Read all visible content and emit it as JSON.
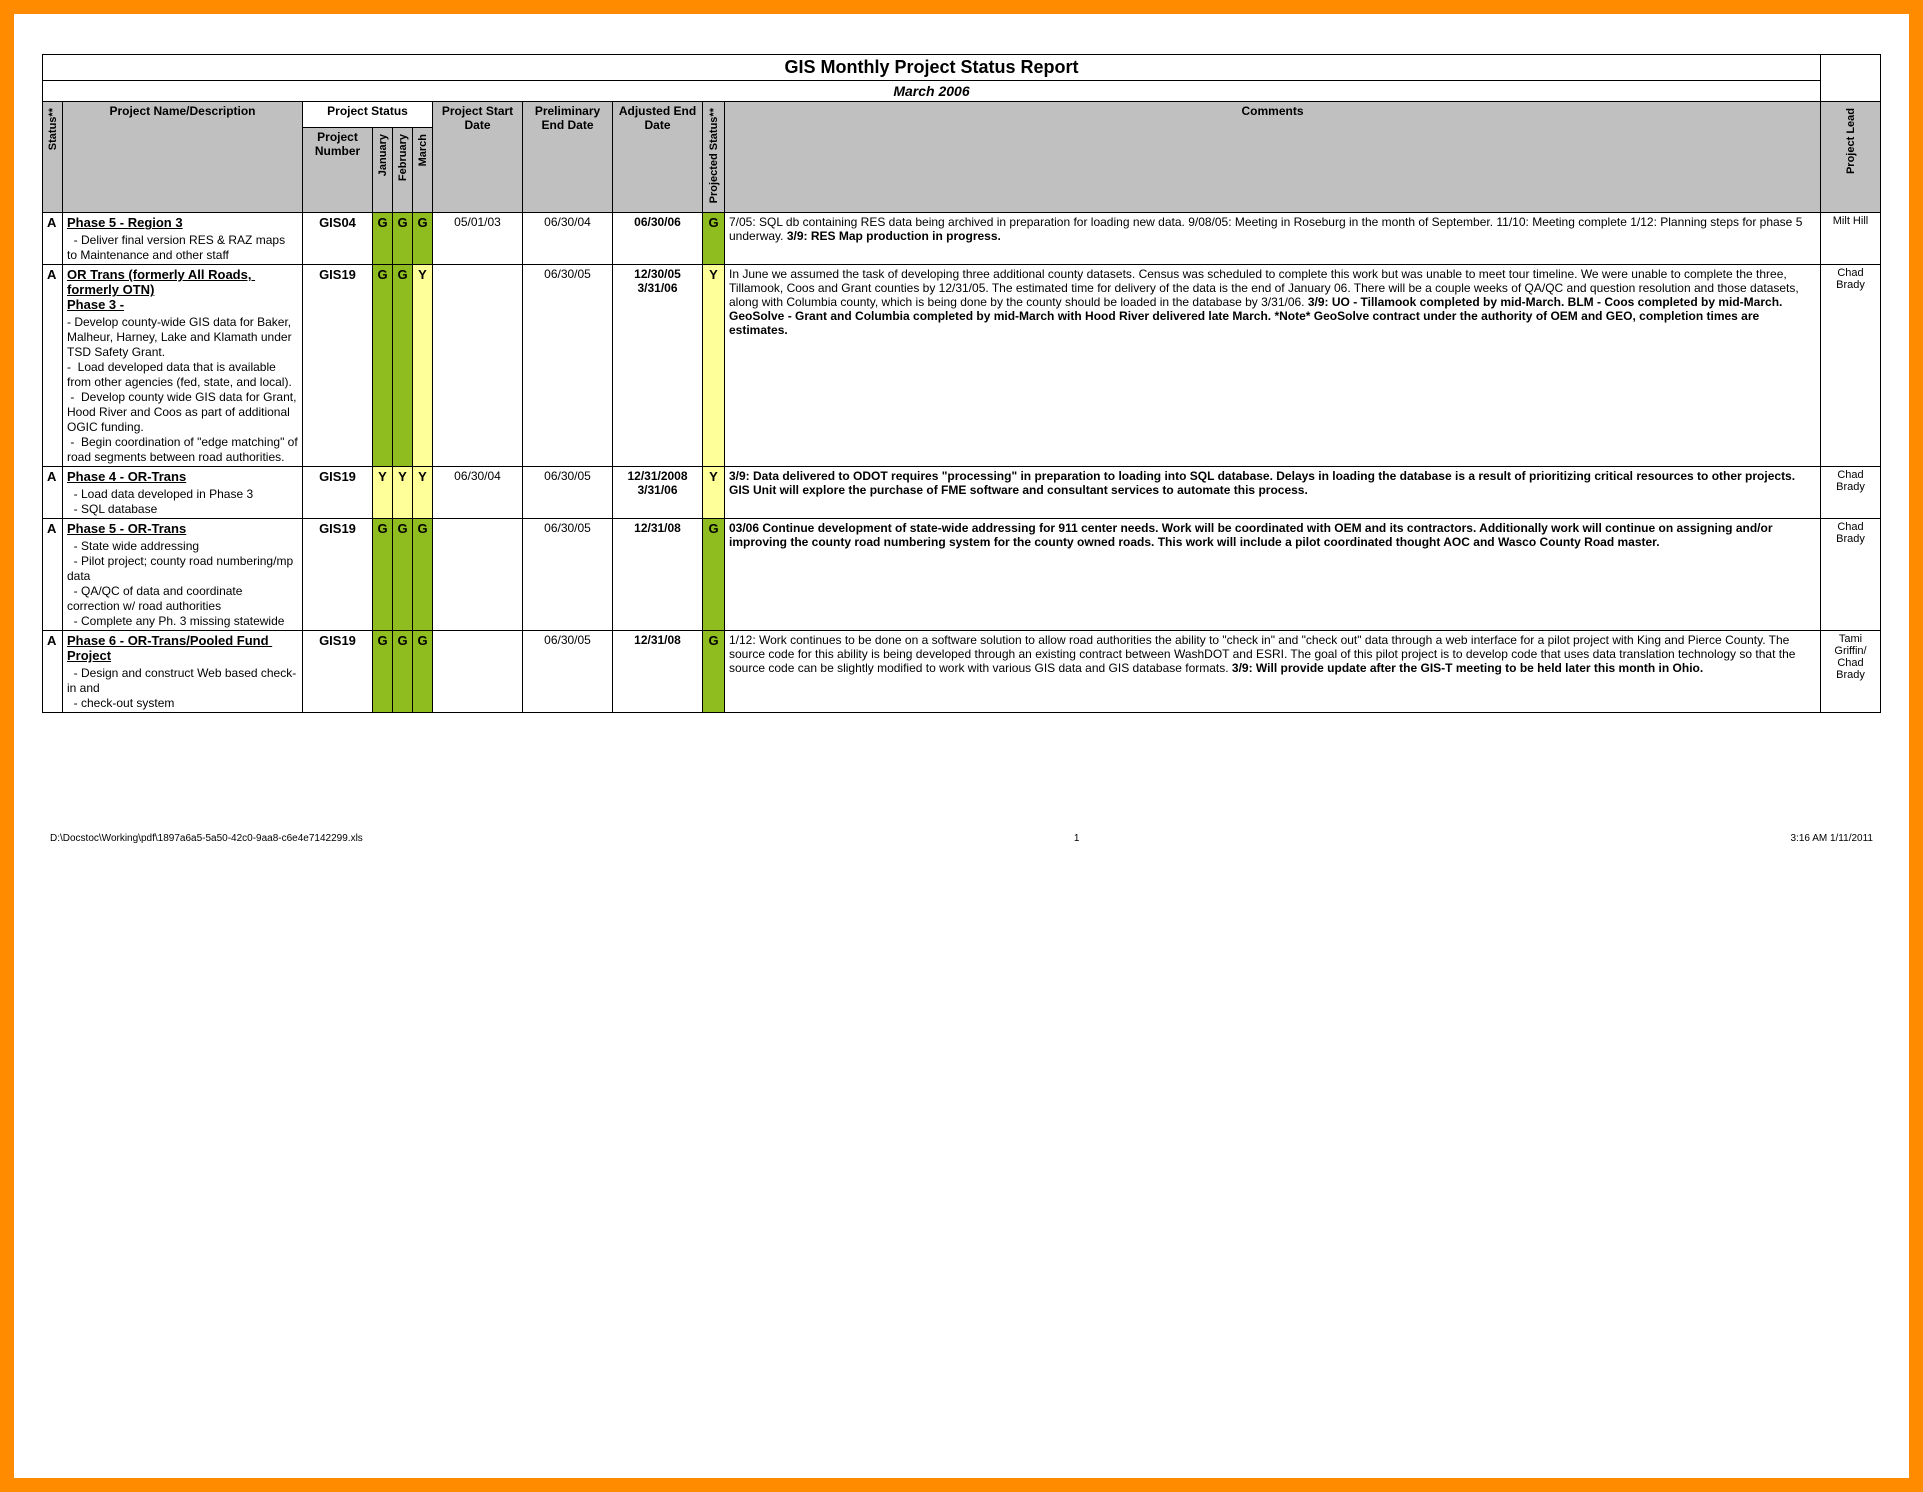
{
  "title": "GIS Monthly Project Status Report",
  "subtitle": "March 2006",
  "colors": {
    "border_outer": "#ff8c00",
    "header_bg": "#c0c0c0",
    "status_g": "#8fbc1f",
    "status_y": "#ffff99",
    "text": "#000000",
    "background": "#ffffff"
  },
  "headers": {
    "status": "Status**",
    "project_name": "Project Name/Description",
    "project_status_group": "Project Status",
    "project_number": "Project Number",
    "months": [
      "January",
      "February",
      "March"
    ],
    "start_date": "Project Start Date",
    "prelim_end": "Preliminary End Date",
    "adj_end": "Adjusted End Date",
    "proj_status": "Projected Status**",
    "comments": "Comments",
    "lead": "Project Lead"
  },
  "rows": [
    {
      "status": "A",
      "name_title": "Phase 5 - Region 3",
      "name_desc": "  - Deliver final version RES & RAZ maps to Maintenance and other staff",
      "project_number": "GIS04",
      "months": [
        "G",
        "G",
        "G"
      ],
      "start_date": "05/01/03",
      "prelim_end": "06/30/04",
      "adj_end": "06/30/06",
      "adj_end_bold": true,
      "proj_status": "G",
      "comments_plain": "7/05: SQL db containing RES data being archived in preparation for loading new data.  9/08/05:  Meeting in Roseburg in the month of September.  11/10: Meeting complete 1/12: Planning steps for phase 5 underway.  ",
      "comments_bold": "3/9:  RES Map production in progress.",
      "lead": "Milt Hill"
    },
    {
      "status": "A",
      "name_title": "OR Trans (formerly All Roads, formerly OTN)\nPhase 3 -",
      "name_desc": "- Develop county-wide GIS data for Baker, Malheur, Harney, Lake and Klamath under TSD Safety Grant.\n-  Load developed data that is available from other agencies (fed, state, and local).\n -  Develop county wide GIS data for Grant, Hood River and Coos as part of additional OGIC funding.\n -  Begin coordination of \"edge matching\" of road segments between road authorities.",
      "project_number": "GIS19",
      "months": [
        "G",
        "G",
        "Y"
      ],
      "start_date": "",
      "prelim_end": "06/30/05",
      "adj_end": "12/30/05\n3/31/06",
      "adj_end_bold": true,
      "proj_status": "Y",
      "comments_plain": "In June we assumed the task of developing three additional  county datasets.  Census was scheduled to complete this work but was unable to meet tour timeline.  We were unable to complete the three, Tillamook, Coos and Grant counties by 12/31/05. The estimated time for delivery of the data is the end of January 06.  There will be a couple weeks of QA/QC and question resolution and those datasets, along with Columbia county, which is being done by the county should be loaded in the database by 3/31/06.  ",
      "comments_bold": "3/9: UO - Tillamook completed by mid-March. BLM - Coos completed by mid-March. GeoSolve - Grant and Columbia completed by mid-March with Hood River delivered late March. *Note* GeoSolve contract under the authority of OEM and GEO, completion times are estimates.",
      "lead": "Chad Brady"
    },
    {
      "status": "A",
      "name_title": "Phase 4 - OR-Trans",
      "name_desc": "  - Load data developed in Phase 3\n  - SQL database",
      "project_number": "GIS19",
      "months": [
        "Y",
        "Y",
        "Y"
      ],
      "start_date": "06/30/04",
      "prelim_end": "06/30/05",
      "adj_end": "12/31/2008\n3/31/06",
      "adj_end_bold": true,
      "proj_status": "Y",
      "comments_plain": "",
      "comments_bold": "3/9: Data delivered to ODOT requires \"processing\" in preparation to loading into SQL database. Delays in loading the database is a result of prioritizing critical resources to other projects. GIS Unit will explore the purchase of FME software and consultant services to automate this process.",
      "lead": "Chad Brady"
    },
    {
      "status": "A",
      "name_title": "Phase 5 - OR-Trans",
      "name_desc": "  - State wide addressing\n  - Pilot project; county road numbering/mp data\n  - QA/QC of data and coordinate correction w/ road authorities\n  - Complete any Ph. 3 missing statewide",
      "project_number": "GIS19",
      "months": [
        "G",
        "G",
        "G"
      ],
      "start_date": "",
      "prelim_end": "06/30/05",
      "adj_end": "12/31/08",
      "adj_end_bold": true,
      "proj_status": "G",
      "comments_plain": "",
      "comments_bold": "03/06 Continue development of state-wide addressing for 911 center needs.  Work will be coordinated with OEM and its contractors.  Additionally work will continue on assigning and/or improving the county road numbering system for the county owned roads.  This work will include a pilot coordinated thought AOC and Wasco County Road master.",
      "lead": "Chad Brady"
    },
    {
      "status": "A",
      "name_title": "Phase 6 - OR-Trans/Pooled Fund Project",
      "name_desc": "  - Design and construct Web based check-in and\n  - check-out system",
      "project_number": "GIS19",
      "months": [
        "G",
        "G",
        "G"
      ],
      "start_date": "",
      "prelim_end": "06/30/05",
      "adj_end": "12/31/08",
      "adj_end_bold": true,
      "proj_status": "G",
      "comments_plain": "1/12: Work continues to be done on a software solution to allow road authorities the ability to \"check in\" and \"check out\" data through a web interface for a pilot project with King and Pierce County. The source code for this ability is being developed through an existing contract between WashDOT and ESRI. The goal of this pilot project is to develop code that uses data translation technology so that the source code can be slightly modified to work with various GIS data and GIS database formats.  ",
      "comments_bold": "3/9: Will provide update after the GIS-T meeting to be held later this month in Ohio.",
      "lead": "Tami Griffin/ Chad Brady"
    }
  ],
  "footer": {
    "path": "D:\\Docstoc\\Working\\pdf\\1897a6a5-5a50-42c0-9aa8-c6e4e7142299.xls",
    "page": "1",
    "printed": "3:16 AM   1/11/2011"
  }
}
